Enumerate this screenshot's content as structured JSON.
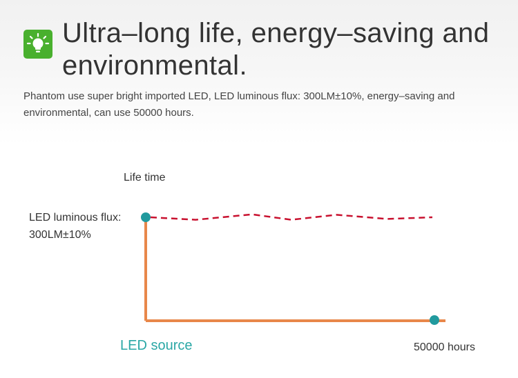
{
  "header": {
    "icon": "lightbulb-icon",
    "title": "Ultra–long life, energy–saving and environmental.",
    "description": "Phantom use super bright imported LED, LED luminous flux: 300LM±10%, energy–saving and environmental, can use 50000 hours."
  },
  "colors": {
    "accent_green": "#49b02e",
    "axis": "#e8874a",
    "flux_line": "#c8102e",
    "marker": "#219a9e",
    "source_text": "#2aa7a5"
  },
  "chart_data": {
    "type": "line",
    "ylabel": "Life time",
    "flux_label_line1": "LED luminous flux:",
    "flux_label_line2": "300LM±10%",
    "x_end_label": "50000 hours",
    "source_label": "LED source",
    "xlim": [
      0,
      50000
    ],
    "series": [
      {
        "x": [
          0,
          8000,
          18000,
          25000,
          33000,
          42000,
          50000
        ],
        "values": [
          0,
          -0.6,
          0.7,
          -0.6,
          0.6,
          -0.4,
          0
        ]
      }
    ],
    "markers": [
      "flux-start",
      "life-end"
    ],
    "grid": false
  }
}
